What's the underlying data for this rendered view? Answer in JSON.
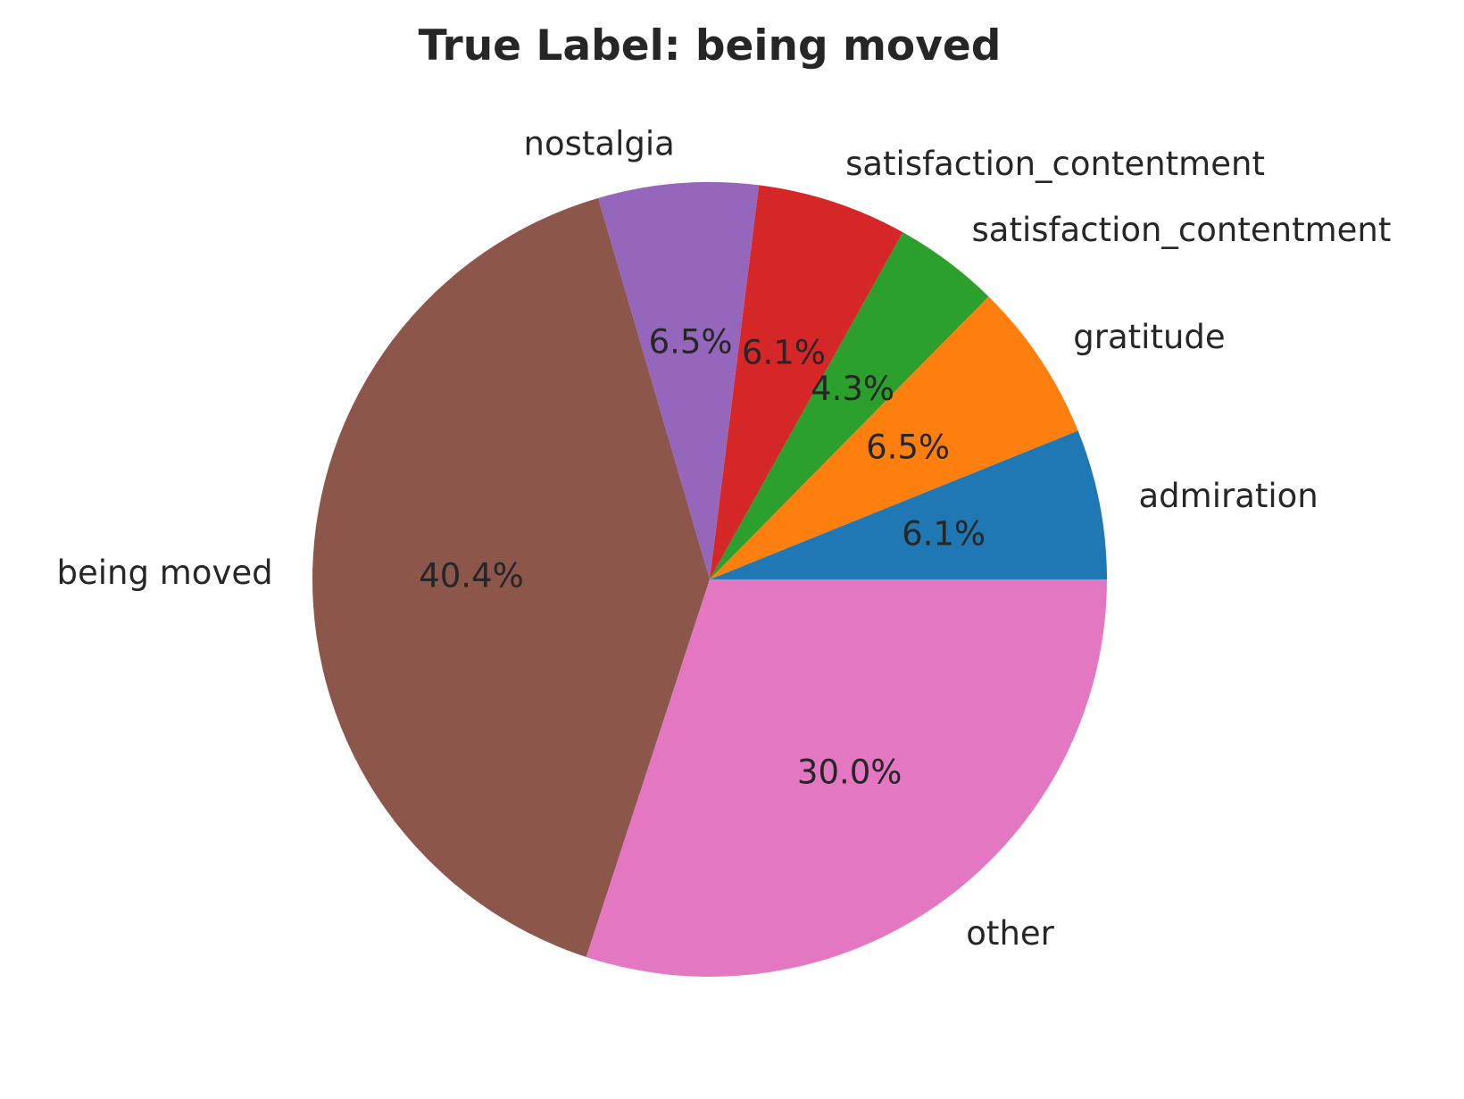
{
  "chart_data": {
    "type": "pie",
    "title": "True Label: being moved",
    "start_angle_deg": 0,
    "direction": "counterclockwise",
    "slices": [
      {
        "label": "admiration",
        "value": 6.1,
        "pct_label": "6.1%",
        "color": "#1f77b4"
      },
      {
        "label": "gratitude",
        "value": 6.5,
        "pct_label": "6.5%",
        "color": "#ff7f0e"
      },
      {
        "label": "satisfaction_contentment",
        "value": 4.3,
        "pct_label": "4.3%",
        "color": "#2ca02c"
      },
      {
        "label": "satisfaction_contentment",
        "value": 6.1,
        "pct_label": "6.1%",
        "color": "#d62728"
      },
      {
        "label": "nostalgia",
        "value": 6.5,
        "pct_label": "6.5%",
        "color": "#9467bd"
      },
      {
        "label": "being moved",
        "value": 40.4,
        "pct_label": "40.4%",
        "color": "#8c564b"
      },
      {
        "label": "other",
        "value": 30.0,
        "pct_label": "30.0%",
        "color": "#e377c2"
      }
    ]
  }
}
